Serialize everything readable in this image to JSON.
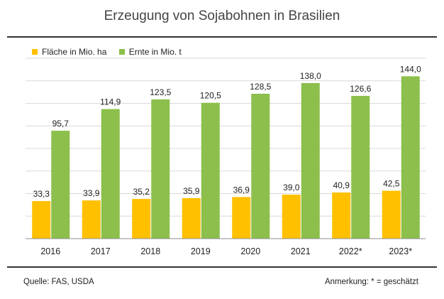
{
  "title": "Erzeugung von Sojabohnen in Brasilien",
  "source": "Quelle:  FAS, USDA",
  "note": "Anmerkung: * = geschätzt",
  "colors": {
    "flaeche": "#FFC000",
    "ernte": "#8CBF4B",
    "grid": "#D9D9D9",
    "axis": "#8C8C8C"
  },
  "chart_data": {
    "type": "bar",
    "title": "Erzeugung von Sojabohnen in Brasilien",
    "xlabel": "",
    "ylabel": "",
    "ylim": [
      0,
      160
    ],
    "grid": true,
    "legend_position": "top-left",
    "categories": [
      "2016",
      "2017",
      "2018",
      "2019",
      "2020",
      "2021",
      "2022*",
      "2023*"
    ],
    "series": [
      {
        "name": "Fläche in Mio. ha",
        "values": [
          33.3,
          33.9,
          35.2,
          35.9,
          36.9,
          39.0,
          40.9,
          42.5
        ],
        "labels": [
          "33,3",
          "33,9",
          "35,2",
          "35,9",
          "36,9",
          "39,0",
          "40,9",
          "42,5"
        ]
      },
      {
        "name": "Ernte in Mio. t",
        "values": [
          95.7,
          114.9,
          123.5,
          120.5,
          128.5,
          138.0,
          126.6,
          144.0
        ],
        "labels": [
          "95,7",
          "114,9",
          "123,5",
          "120,5",
          "128,5",
          "138,0",
          "126,6",
          "144,0"
        ]
      }
    ]
  }
}
